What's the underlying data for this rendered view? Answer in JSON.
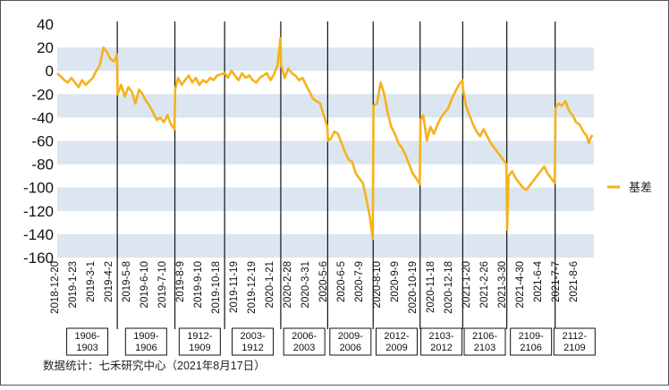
{
  "footer": {
    "source": "数据统计：七禾研究中心（2021年8月17日）"
  },
  "chart_data": {
    "type": "line",
    "ylim": [
      -160,
      40
    ],
    "ytick_step": 20,
    "yticks": [
      "40",
      "20",
      "0",
      "-20",
      "-40",
      "-60",
      "-80",
      "-100",
      "-120",
      "-140",
      "-160"
    ],
    "x_tick_labels": [
      "2018-12-20",
      "2019-1-23",
      "2019-3-1",
      "2019-4-2",
      "2019-5-8",
      "2019-6-10",
      "2019-7-10",
      "2019-8-9",
      "2019-9-10",
      "2019-10-18",
      "2019-11-19",
      "2019-12-19",
      "2020-1-21",
      "2020-2-28",
      "2020-3-31",
      "2020-5-6",
      "2020-6-5",
      "2020-7-9",
      "2020-8-10",
      "2020-9-9",
      "2020-10-19",
      "2020-11-18",
      "2020-12-18",
      "2021-1-20",
      "2021-2-26",
      "2021-3-30",
      "2021-4-30",
      "2021-6-4",
      "2021-7-7",
      "2021-8-6"
    ],
    "series": [
      {
        "name": "基差",
        "color": "#f5b21b",
        "points": [
          [
            0,
            -2
          ],
          [
            0.5,
            -5
          ],
          [
            1,
            -8
          ],
          [
            1.5,
            -10
          ],
          [
            2,
            -6
          ],
          [
            2.5,
            -10
          ],
          [
            3,
            -14
          ],
          [
            3.5,
            -8
          ],
          [
            4,
            -12
          ],
          [
            4.5,
            -9
          ],
          [
            5,
            -6
          ],
          [
            5.5,
            0
          ],
          [
            6,
            5
          ],
          [
            6.5,
            20
          ],
          [
            7,
            16
          ],
          [
            7.5,
            10
          ],
          [
            8,
            8
          ],
          [
            8.4,
            14
          ],
          [
            8.5,
            -20
          ],
          [
            9,
            -12
          ],
          [
            9.5,
            -22
          ],
          [
            10,
            -14
          ],
          [
            10.5,
            -18
          ],
          [
            11,
            -28
          ],
          [
            11.5,
            -16
          ],
          [
            12,
            -20
          ],
          [
            12.5,
            -26
          ],
          [
            13,
            -30
          ],
          [
            13.5,
            -36
          ],
          [
            14,
            -42
          ],
          [
            14.5,
            -40
          ],
          [
            15,
            -44
          ],
          [
            15.5,
            -38
          ],
          [
            16,
            -46
          ],
          [
            16.5,
            -50
          ],
          [
            16.6,
            -16
          ],
          [
            17,
            -6
          ],
          [
            17.5,
            -12
          ],
          [
            18,
            -8
          ],
          [
            18.5,
            -4
          ],
          [
            19,
            -10
          ],
          [
            19.5,
            -6
          ],
          [
            20,
            -12
          ],
          [
            20.5,
            -8
          ],
          [
            21,
            -10
          ],
          [
            21.5,
            -6
          ],
          [
            22,
            -8
          ],
          [
            22.5,
            -4
          ],
          [
            23.5,
            -2
          ],
          [
            23.6,
            -2
          ],
          [
            24,
            -6
          ],
          [
            24.5,
            0
          ],
          [
            25,
            -4
          ],
          [
            25.5,
            -8
          ],
          [
            26,
            -2
          ],
          [
            26.5,
            -6
          ],
          [
            27,
            -4
          ],
          [
            27.5,
            -8
          ],
          [
            28,
            -10
          ],
          [
            28.5,
            -6
          ],
          [
            29,
            -4
          ],
          [
            29.5,
            -2
          ],
          [
            30,
            -8
          ],
          [
            30.5,
            -3
          ],
          [
            31,
            5
          ],
          [
            31.4,
            28
          ],
          [
            31.5,
            5
          ],
          [
            32,
            -6
          ],
          [
            32.5,
            2
          ],
          [
            33,
            -2
          ],
          [
            33.5,
            -4
          ],
          [
            34,
            -8
          ],
          [
            34.5,
            -6
          ],
          [
            35,
            -12
          ],
          [
            35.5,
            -18
          ],
          [
            36,
            -24
          ],
          [
            36.5,
            -26
          ],
          [
            37,
            -28
          ],
          [
            37.5,
            -38
          ],
          [
            38,
            -48
          ],
          [
            38.1,
            -60
          ],
          [
            38.5,
            -58
          ],
          [
            39,
            -52
          ],
          [
            39.5,
            -54
          ],
          [
            40,
            -62
          ],
          [
            40.5,
            -70
          ],
          [
            41,
            -76
          ],
          [
            41.5,
            -78
          ],
          [
            42,
            -88
          ],
          [
            42.5,
            -92
          ],
          [
            43,
            -96
          ],
          [
            43.5,
            -110
          ],
          [
            44,
            -126
          ],
          [
            44.4,
            -144
          ],
          [
            44.5,
            -30
          ],
          [
            45,
            -28
          ],
          [
            45.5,
            -10
          ],
          [
            46,
            -20
          ],
          [
            46.5,
            -36
          ],
          [
            47,
            -48
          ],
          [
            47.5,
            -54
          ],
          [
            48,
            -62
          ],
          [
            48.5,
            -66
          ],
          [
            49,
            -72
          ],
          [
            49.5,
            -80
          ],
          [
            50,
            -88
          ],
          [
            50.5,
            -92
          ],
          [
            51,
            -97
          ],
          [
            51.1,
            -42
          ],
          [
            51.5,
            -38
          ],
          [
            52,
            -60
          ],
          [
            52.5,
            -48
          ],
          [
            53,
            -54
          ],
          [
            53.5,
            -46
          ],
          [
            54,
            -40
          ],
          [
            54.5,
            -36
          ],
          [
            55,
            -32
          ],
          [
            55.5,
            -24
          ],
          [
            56,
            -18
          ],
          [
            56.5,
            -12
          ],
          [
            57,
            -8
          ],
          [
            57.1,
            -16
          ],
          [
            57.5,
            -30
          ],
          [
            58,
            -38
          ],
          [
            58.5,
            -46
          ],
          [
            59,
            -52
          ],
          [
            59.5,
            -56
          ],
          [
            60,
            -50
          ],
          [
            60.5,
            -56
          ],
          [
            61,
            -62
          ],
          [
            61.5,
            -66
          ],
          [
            62,
            -70
          ],
          [
            62.5,
            -74
          ],
          [
            63.2,
            -80
          ],
          [
            63.3,
            -136
          ],
          [
            63.5,
            -90
          ],
          [
            64,
            -86
          ],
          [
            64.5,
            -92
          ],
          [
            65,
            -96
          ],
          [
            65.5,
            -100
          ],
          [
            66,
            -102
          ],
          [
            66.5,
            -98
          ],
          [
            67,
            -94
          ],
          [
            67.5,
            -90
          ],
          [
            68,
            -86
          ],
          [
            68.5,
            -82
          ],
          [
            69,
            -88
          ],
          [
            69.5,
            -92
          ],
          [
            70,
            -96
          ],
          [
            70.1,
            -32
          ],
          [
            70.5,
            -28
          ],
          [
            71,
            -30
          ],
          [
            71.5,
            -26
          ],
          [
            72,
            -34
          ],
          [
            72.5,
            -38
          ],
          [
            73,
            -44
          ],
          [
            73.5,
            -46
          ],
          [
            74,
            -52
          ],
          [
            74.5,
            -56
          ],
          [
            74.8,
            -62
          ],
          [
            75,
            -58
          ],
          [
            75.3,
            -55
          ]
        ]
      }
    ],
    "contract_boxes": [
      [
        "1906-",
        "1903"
      ],
      [
        "1909-",
        "1906"
      ],
      [
        "1912-",
        "1909"
      ],
      [
        "2003-",
        "1912"
      ],
      [
        "2006-",
        "2003"
      ],
      [
        "2009-",
        "2006"
      ],
      [
        "2012-",
        "2009"
      ],
      [
        "2103-",
        "2012"
      ],
      [
        "2106-",
        "2103"
      ],
      [
        "2109-",
        "2106"
      ],
      [
        "2112-",
        "2109"
      ]
    ],
    "contract_switch_x": [
      8.45,
      16.55,
      23.55,
      31.45,
      38.05,
      44.45,
      51.05,
      57.05,
      63.25,
      70.05
    ],
    "x_range": [
      0,
      75.5
    ],
    "legend_position": "right",
    "band_color": "#dce6f1"
  }
}
